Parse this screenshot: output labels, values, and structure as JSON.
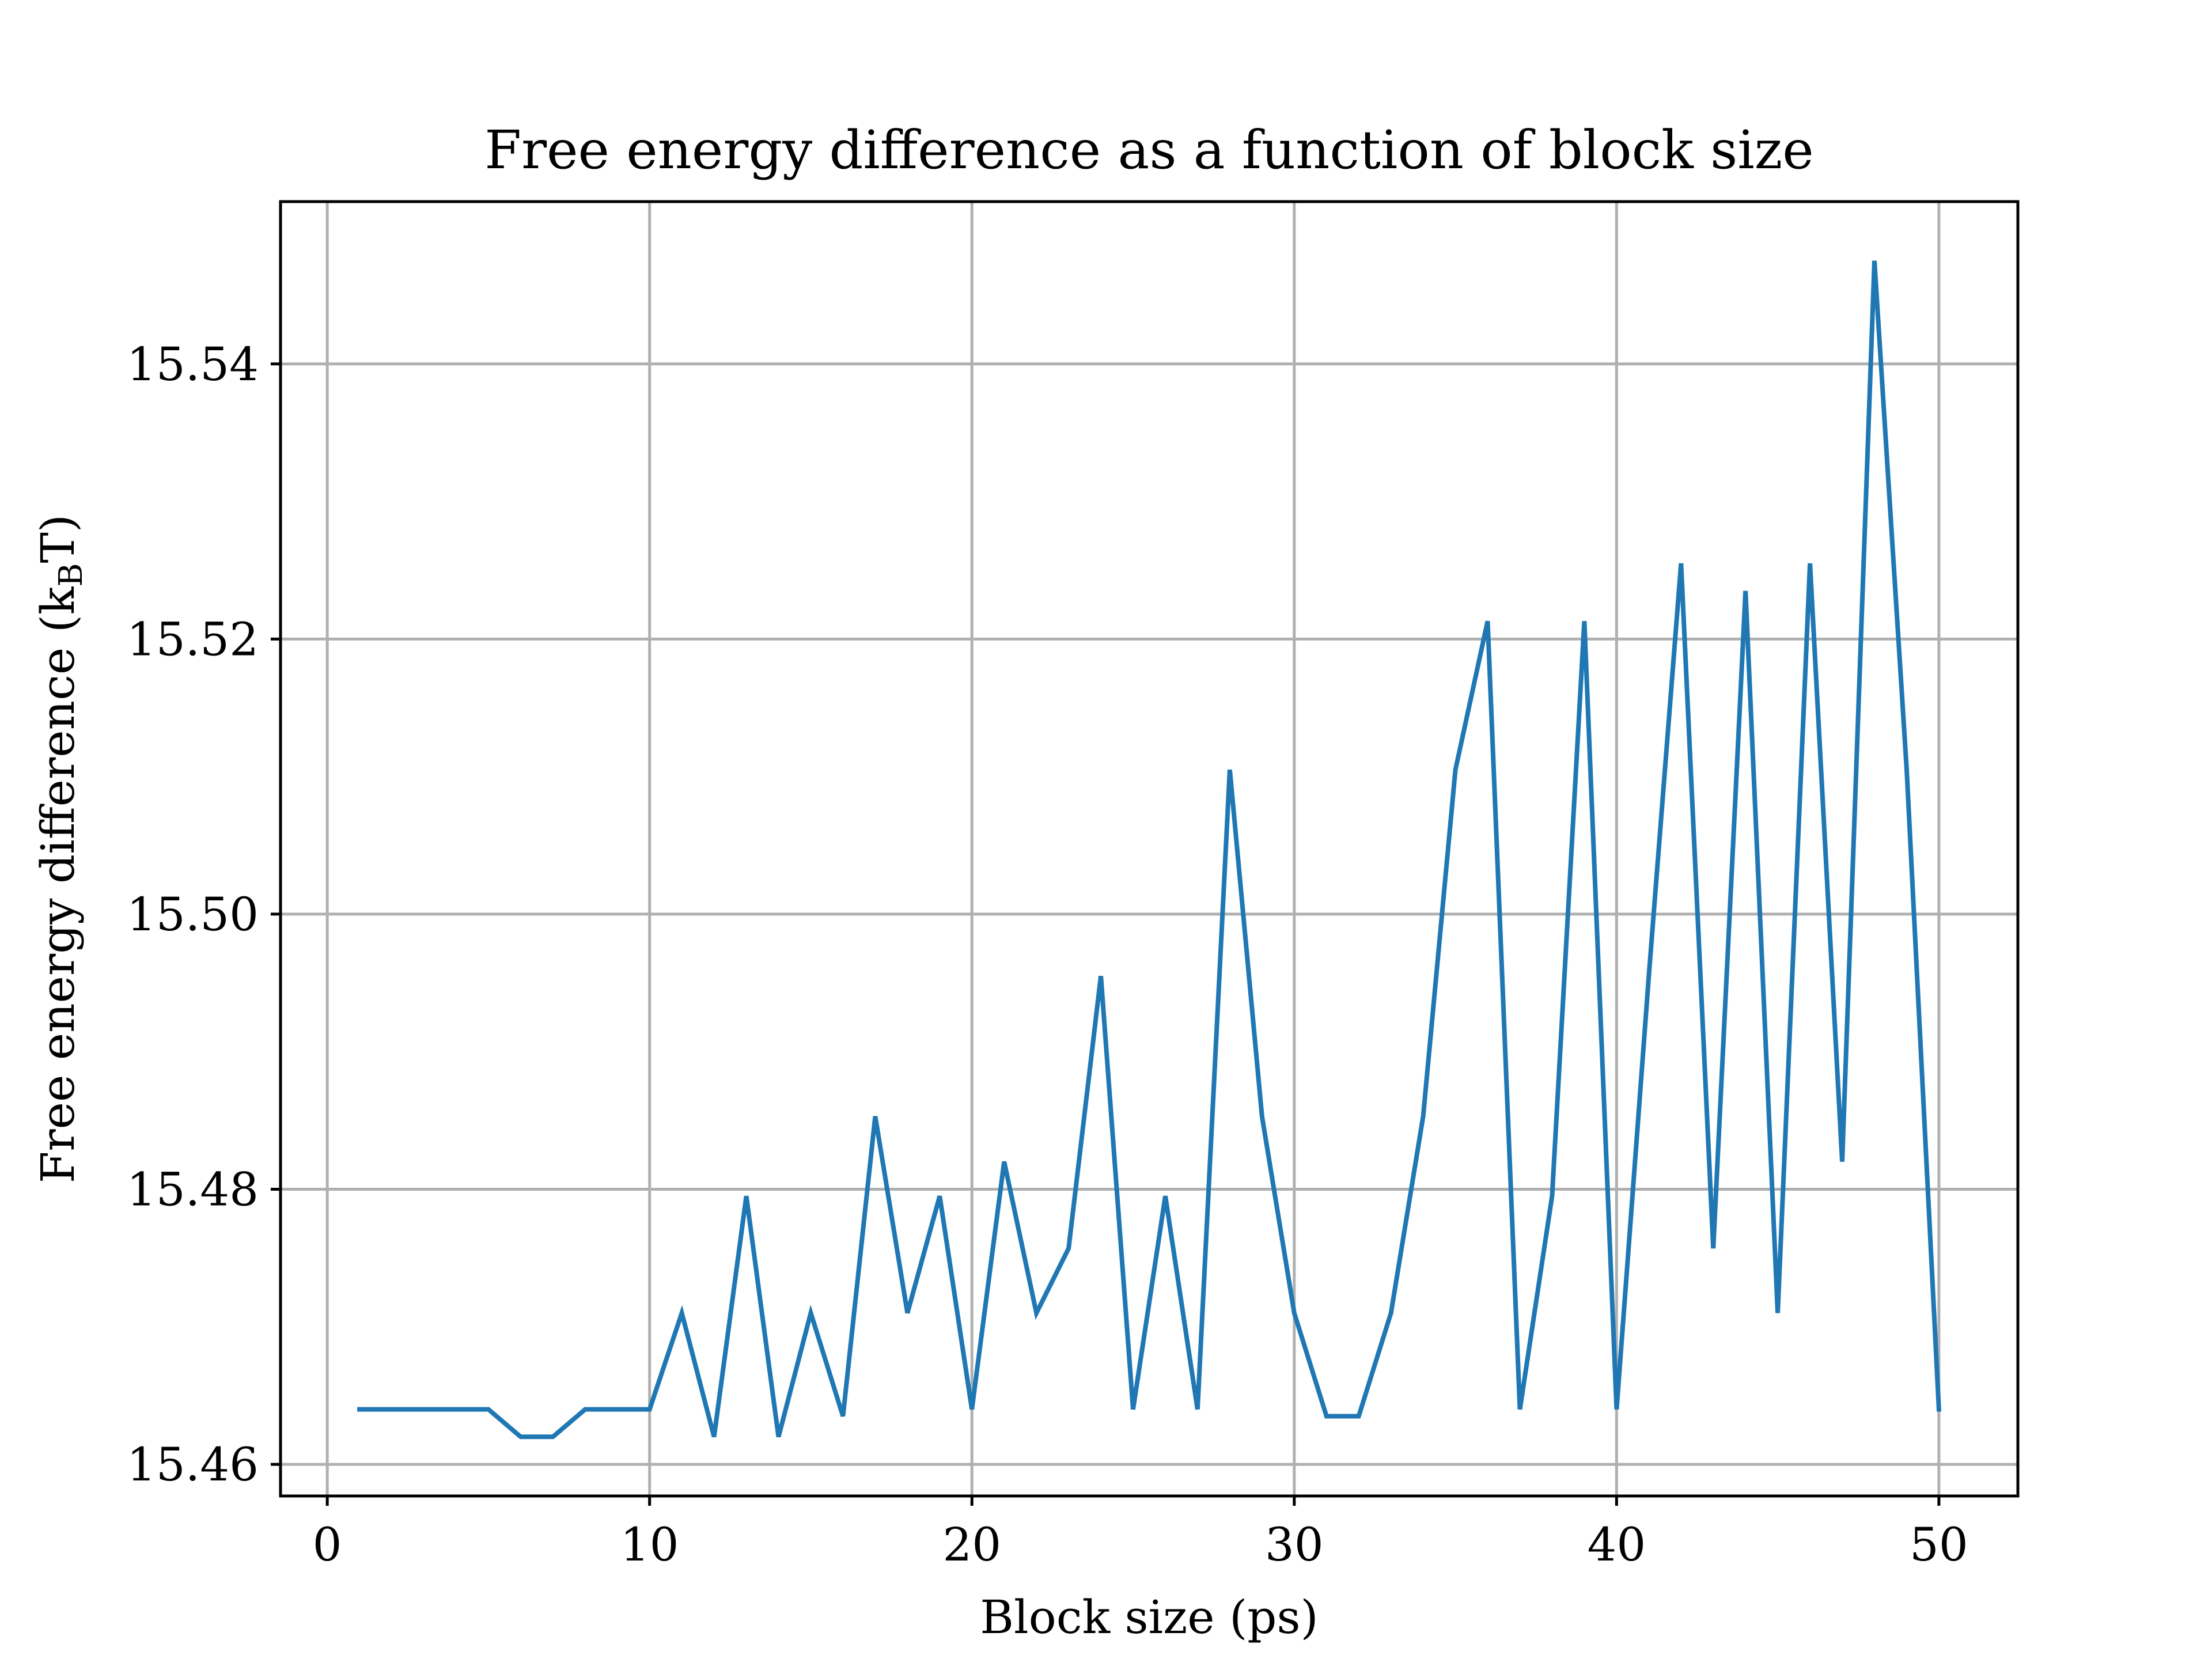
{
  "chart_data": {
    "type": "line",
    "title": "Free energy difference as a function of block size",
    "xlabel": "Block size (ps)",
    "ylabel": {
      "main": "Free energy difference (k",
      "sub": "B",
      "tail": "T)"
    },
    "xlim": [
      -1.45,
      52.45
    ],
    "ylim": [
      15.4577,
      15.5518
    ],
    "xticks": [
      0,
      10,
      20,
      30,
      40,
      50
    ],
    "xtick_labels": [
      "0",
      "10",
      "20",
      "30",
      "40",
      "50"
    ],
    "yticks": [
      15.46,
      15.48,
      15.5,
      15.52,
      15.54
    ],
    "ytick_labels": [
      "15.46",
      "15.48",
      "15.50",
      "15.52",
      "15.54"
    ],
    "grid": true,
    "series": [
      {
        "color": "#1f77b4",
        "x": [
          1,
          2,
          3,
          4,
          5,
          6,
          7,
          8,
          9,
          10,
          11,
          12,
          13,
          14,
          15,
          16,
          17,
          18,
          19,
          20,
          21,
          22,
          23,
          24,
          25,
          26,
          27,
          28,
          29,
          30,
          31,
          32,
          33,
          34,
          35,
          36,
          37,
          38,
          39,
          40,
          41,
          42,
          43,
          44,
          45,
          46,
          47,
          48,
          49,
          50
        ],
        "y": [
          15.464,
          15.464,
          15.464,
          15.464,
          15.464,
          15.462,
          15.462,
          15.464,
          15.464,
          15.464,
          15.471,
          15.462,
          15.4795,
          15.462,
          15.471,
          15.4635,
          15.4853,
          15.471,
          15.4795,
          15.464,
          15.482,
          15.471,
          15.4757,
          15.4955,
          15.464,
          15.4795,
          15.464,
          15.5105,
          15.4853,
          15.471,
          15.4635,
          15.4635,
          15.471,
          15.4853,
          15.5105,
          15.5213,
          15.464,
          15.4795,
          15.5213,
          15.464,
          15.4955,
          15.5255,
          15.4757,
          15.5235,
          15.471,
          15.5255,
          15.482,
          15.5475,
          15.5105,
          15.464
        ]
      }
    ]
  }
}
